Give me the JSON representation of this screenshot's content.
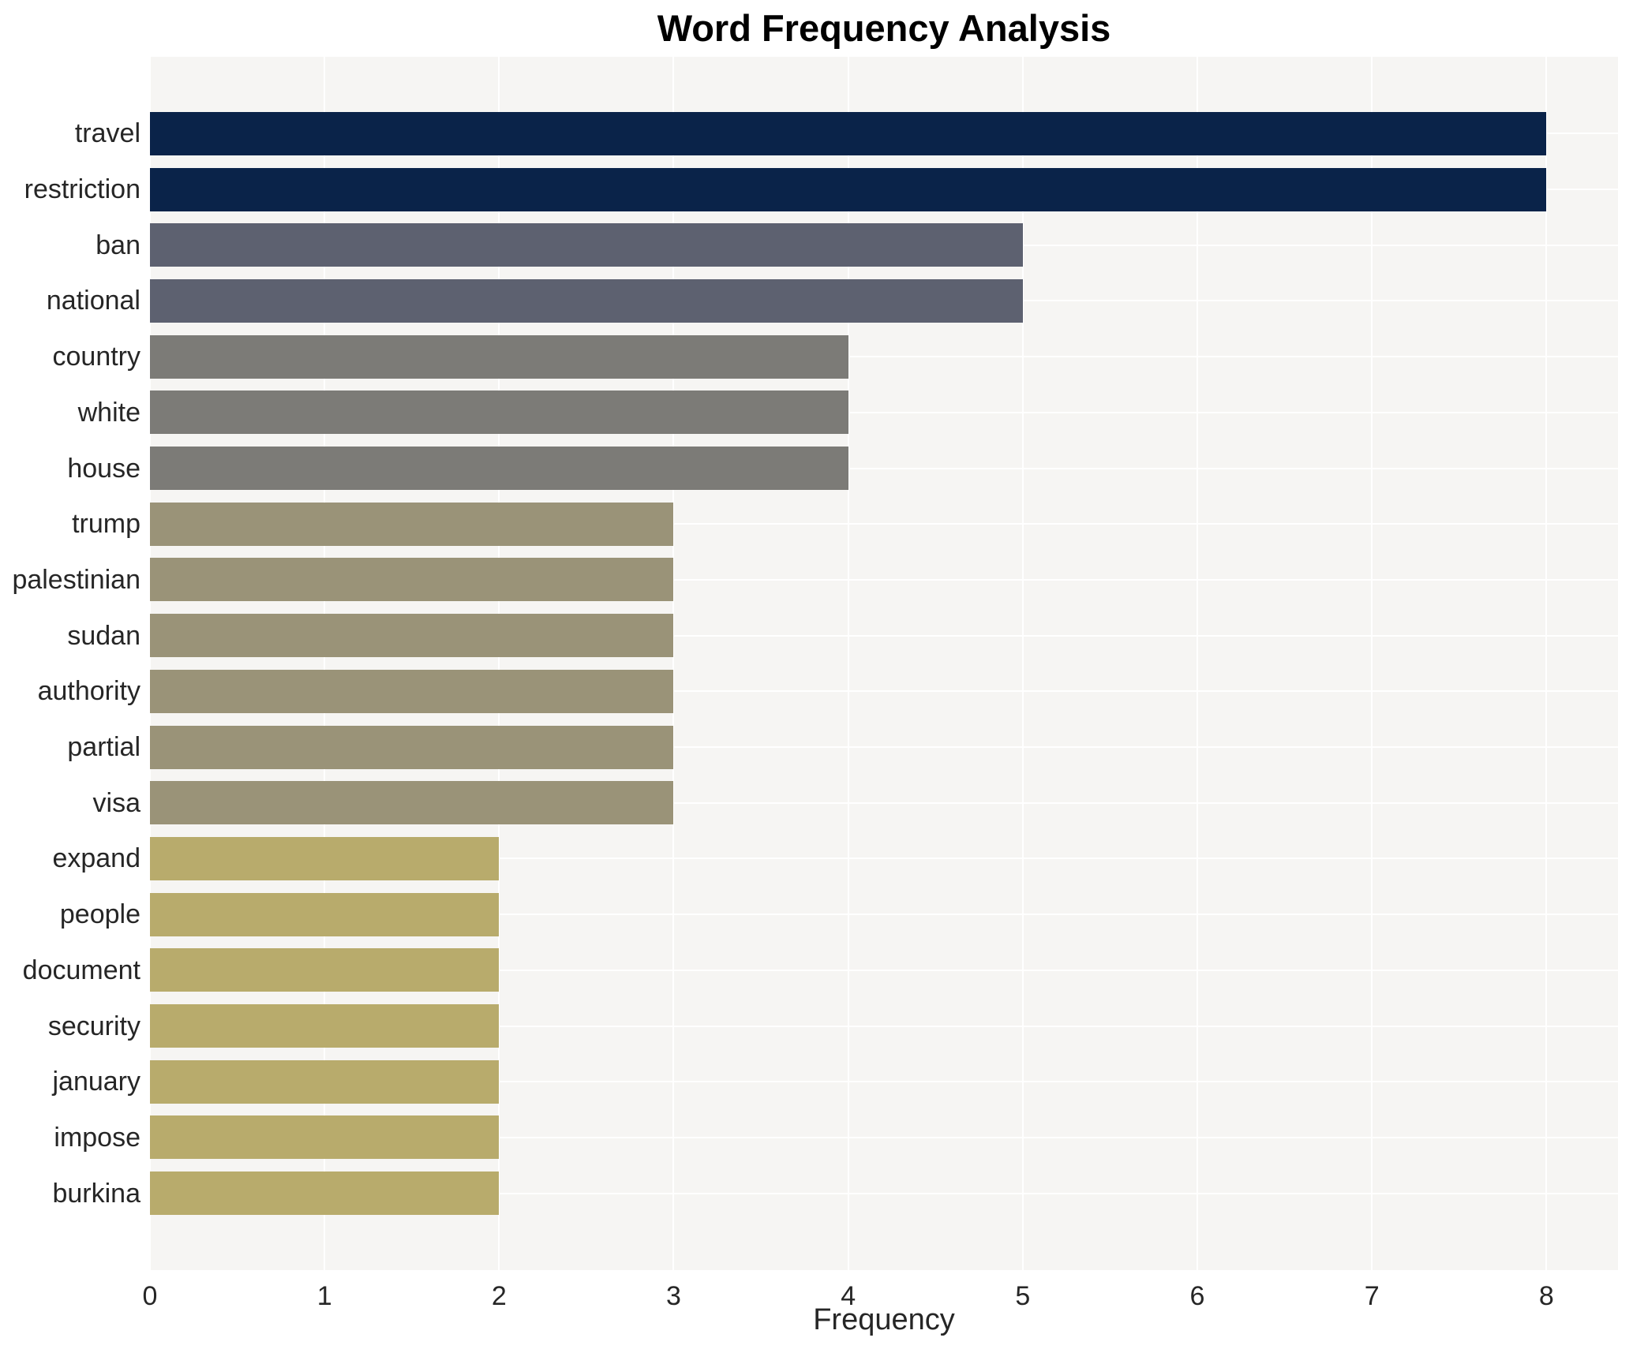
{
  "title": "Word Frequency Analysis",
  "chart_data": {
    "type": "bar",
    "orientation": "horizontal",
    "title": "Word Frequency Analysis",
    "xlabel": "Frequency",
    "ylabel": "",
    "categories": [
      "travel",
      "restriction",
      "ban",
      "national",
      "country",
      "white",
      "house",
      "trump",
      "palestinian",
      "sudan",
      "authority",
      "partial",
      "visa",
      "expand",
      "people",
      "document",
      "security",
      "january",
      "impose",
      "burkina"
    ],
    "values": [
      8,
      8,
      5,
      5,
      4,
      4,
      4,
      3,
      3,
      3,
      3,
      3,
      3,
      2,
      2,
      2,
      2,
      2,
      2,
      2
    ],
    "xlim": [
      0,
      8.41
    ],
    "xticks": [
      0,
      1,
      2,
      3,
      4,
      5,
      6,
      7,
      8
    ],
    "grid": true,
    "legend": false,
    "colors_by_value": {
      "8": "#0a2349",
      "5": "#5d6170",
      "4": "#7c7b77",
      "3": "#9a9378",
      "2": "#b8ab6c"
    },
    "plot_bg_color": "#f6f5f3",
    "grid_color": "#ffffff",
    "text_color": "#262626"
  }
}
